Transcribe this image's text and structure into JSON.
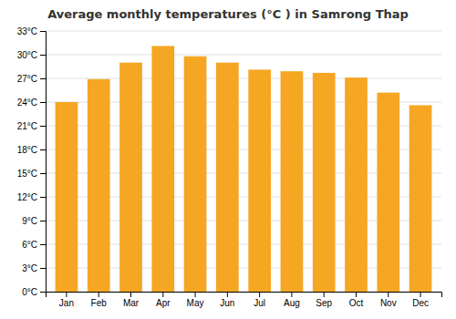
{
  "chart_data": {
    "type": "bar",
    "title": "Average monthly temperatures (°C ) in Samrong Thap",
    "categories": [
      "Jan",
      "Feb",
      "Mar",
      "Apr",
      "May",
      "Jun",
      "Jul",
      "Aug",
      "Sep",
      "Oct",
      "Nov",
      "Dec"
    ],
    "values": [
      24.0,
      26.9,
      29.0,
      31.1,
      29.8,
      29.0,
      28.1,
      27.9,
      27.7,
      27.1,
      25.2,
      23.6
    ],
    "color": "#F5A623",
    "ylim": [
      0,
      33
    ],
    "yticks": [
      {
        "value": 0,
        "label": "0°C"
      },
      {
        "value": 3,
        "label": "3°C"
      },
      {
        "value": 6,
        "label": "6°C"
      },
      {
        "value": 9,
        "label": "9°C"
      },
      {
        "value": 12,
        "label": "12°C"
      },
      {
        "value": 15,
        "label": "15°C"
      },
      {
        "value": 18,
        "label": "18°C"
      },
      {
        "value": 21,
        "label": "21°C"
      },
      {
        "value": 24,
        "label": "24°C"
      },
      {
        "value": 27,
        "label": "27°C"
      },
      {
        "value": 30,
        "label": "30°C"
      },
      {
        "value": 33,
        "label": "33°C"
      }
    ],
    "grid": true
  }
}
